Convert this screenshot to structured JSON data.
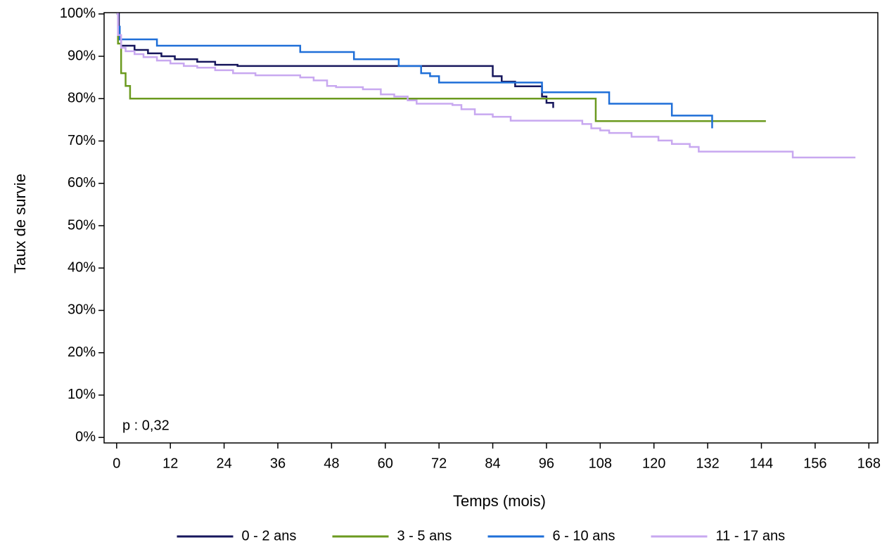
{
  "chart_data": {
    "type": "line",
    "step": "post",
    "x_label": "Temps (mois)",
    "y_label": "Taux de survie",
    "annotation": "p : 0,32",
    "xlim": [
      -2.8,
      170
    ],
    "ylim": [
      -1.3,
      100.3
    ],
    "xticks": [
      0,
      12,
      24,
      36,
      48,
      60,
      72,
      84,
      96,
      108,
      120,
      132,
      144,
      156,
      168
    ],
    "yticks": [
      {
        "value": 0,
        "label": "0%"
      },
      {
        "value": 10,
        "label": "10%"
      },
      {
        "value": 20,
        "label": "20%"
      },
      {
        "value": 30,
        "label": "30%"
      },
      {
        "value": 40,
        "label": "40%"
      },
      {
        "value": 50,
        "label": "50%"
      },
      {
        "value": 60,
        "label": "60%"
      },
      {
        "value": 70,
        "label": "70%"
      },
      {
        "value": 80,
        "label": "80%"
      },
      {
        "value": 90,
        "label": "90%"
      },
      {
        "value": 100,
        "label": "100%"
      }
    ],
    "legend": "bottom",
    "series": [
      {
        "name": "0 - 2 ans",
        "color": "#16165c",
        "x": [
          0,
          0.5,
          1,
          4,
          7,
          10,
          13,
          18,
          22,
          27,
          84,
          86,
          89,
          91,
          95,
          96,
          97.5
        ],
        "values": [
          100,
          94,
          92.5,
          91.5,
          90.7,
          90,
          89.3,
          88.7,
          88,
          87.7,
          85.3,
          84,
          82.9,
          82.9,
          80.5,
          79,
          77.8
        ]
      },
      {
        "name": "3 - 5 ans",
        "color": "#6b9a1f",
        "x": [
          0,
          0.3,
          1,
          2,
          3,
          107,
          145
        ],
        "values": [
          100,
          93,
          86,
          83,
          80,
          74.7,
          74.7
        ]
      },
      {
        "name": "6 - 10 ans",
        "color": "#1f6fd8",
        "x": [
          0,
          0.3,
          0.7,
          9,
          41,
          53,
          63,
          68,
          70,
          72,
          95,
          110,
          124,
          129,
          133
        ],
        "values": [
          100,
          97,
          94,
          92.5,
          91,
          89.3,
          87.7,
          86,
          85.3,
          83.8,
          81.5,
          78.8,
          76,
          76,
          73
        ]
      },
      {
        "name": "11 - 17 ans",
        "color": "#c8a8f0",
        "x": [
          0,
          0.3,
          1,
          2,
          4,
          6,
          9,
          12,
          15,
          18,
          22,
          26,
          31,
          41,
          44,
          47,
          49,
          55,
          59,
          62,
          65,
          67,
          75,
          77,
          80,
          84,
          88,
          104,
          106,
          108,
          110,
          115,
          121,
          124,
          128,
          130,
          151,
          165
        ],
        "values": [
          100,
          95,
          92,
          91.2,
          90.5,
          89.8,
          89,
          88.3,
          87.7,
          87.3,
          86.7,
          86,
          85.5,
          85,
          84.3,
          83,
          82.7,
          82.2,
          81,
          80.5,
          79.6,
          78.8,
          78.5,
          77.5,
          76.3,
          75.7,
          74.8,
          74,
          73,
          72.5,
          71.9,
          71,
          70.1,
          69.3,
          68.6,
          67.5,
          66.1,
          66.1
        ]
      }
    ]
  }
}
